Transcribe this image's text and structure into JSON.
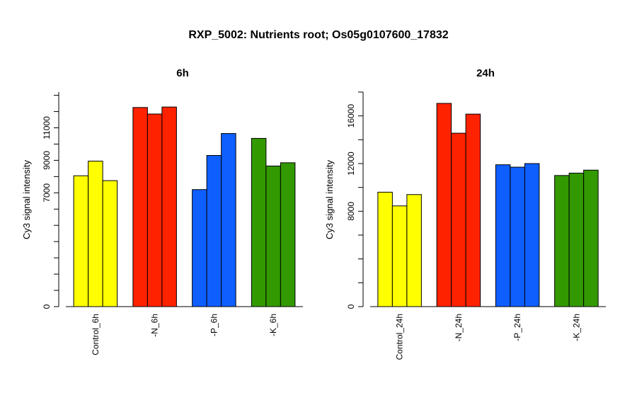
{
  "figure_title": "RXP_5002: Nutrients root; Os05g0107600_17832",
  "colors": {
    "Control": "#ffff00",
    "N": "#ff2200",
    "P": "#0f5fff",
    "K": "#339900"
  },
  "chart_data": [
    {
      "type": "bar",
      "title": "6h",
      "ylabel": "Cy3 signal intensity",
      "xlabel": "",
      "ylim": [
        0,
        13200
      ],
      "yticks": [
        0,
        7000,
        9000,
        11000
      ],
      "grid": false,
      "legend": "none",
      "categories": [
        "Control_6h",
        "-N_6h",
        "-P_6h",
        "-K_6h"
      ],
      "group_colors": [
        "Control",
        "N",
        "P",
        "K"
      ],
      "values": [
        [
          8050,
          8950,
          7750
        ],
        [
          12250,
          11850,
          12280
        ],
        [
          7200,
          9300,
          10650
        ],
        [
          10350,
          8650,
          8850
        ]
      ]
    },
    {
      "type": "bar",
      "title": "24h",
      "ylabel": "Cy3 signal intensity",
      "xlabel": "",
      "ylim": [
        0,
        18000
      ],
      "yticks": [
        0,
        8000,
        12000,
        16000
      ],
      "grid": false,
      "legend": "none",
      "categories": [
        "Control_24h",
        "-N_24h",
        "-P_24h",
        "-K_24h"
      ],
      "group_colors": [
        "Control",
        "N",
        "P",
        "K"
      ],
      "values": [
        [
          9600,
          8450,
          9400
        ],
        [
          17050,
          14550,
          16150
        ],
        [
          11900,
          11700,
          12000
        ],
        [
          11000,
          11200,
          11450
        ]
      ]
    }
  ]
}
